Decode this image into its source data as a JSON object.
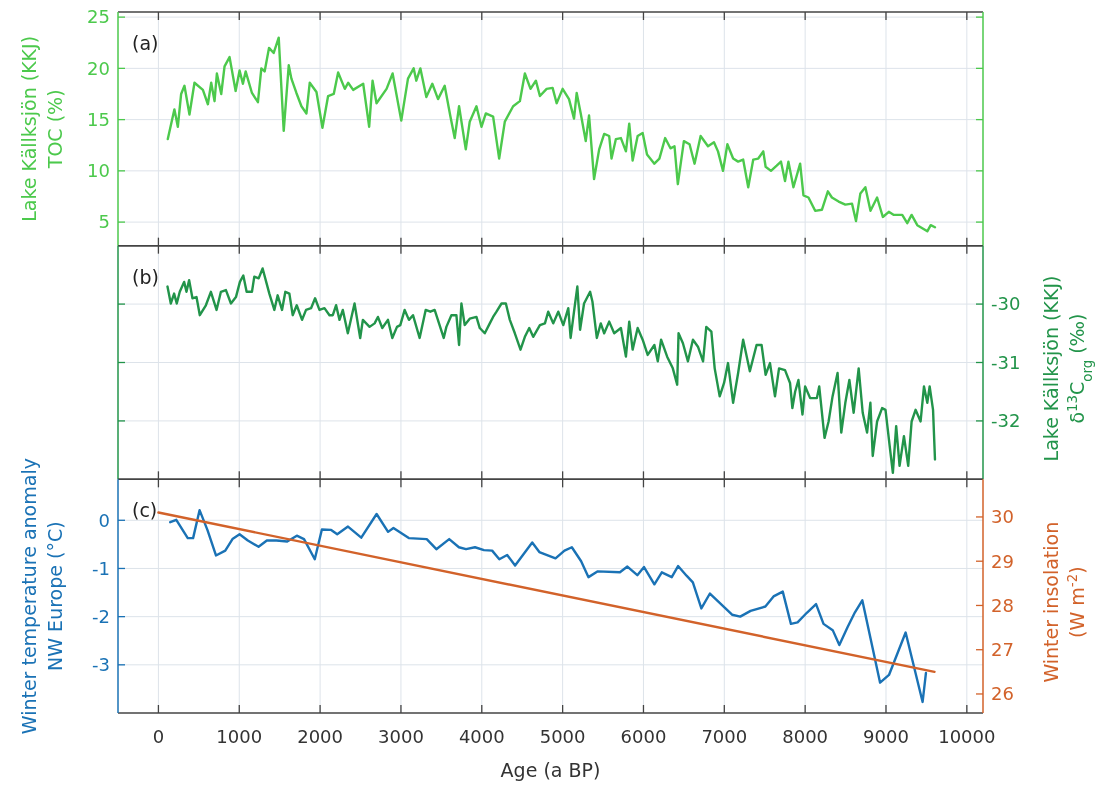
{
  "chart_data": [
    {
      "type": "line",
      "ylabel": "Lake Källksjön (KKJ)\nTOC (%)",
      "annotations": [
        "(a)"
      ],
      "xlim": [
        -500,
        10200
      ],
      "xticks": [
        0,
        1000,
        2000,
        3000,
        4000,
        5000,
        6000,
        7000,
        8000,
        9000,
        10000
      ],
      "ylim": [
        2.7,
        25.5
      ],
      "yticks": [
        5,
        10,
        15,
        20,
        25
      ],
      "grid": true,
      "tick_labels": "y",
      "series": [
        {
          "color": "#4cc94c",
          "x": [
            116,
            198,
            240,
            281,
            322,
            384,
            446,
            550,
            612,
            653,
            694,
            723,
            777,
            818,
            880,
            955,
            1004,
            1045,
            1079,
            1157,
            1231,
            1273,
            1314,
            1368,
            1426,
            1488,
            1550,
            1612,
            1645,
            1707,
            1769,
            1831,
            1872,
            1955,
            2029,
            2099,
            2169,
            2223,
            2306,
            2347,
            2409,
            2533,
            2607,
            2649,
            2698,
            2822,
            2897,
            3004,
            3087,
            3157,
            3190,
            3240,
            3314,
            3388,
            3459,
            3541,
            3612,
            3665,
            3719,
            3802,
            3851,
            3934,
            3996,
            4050,
            4140,
            4215,
            4285,
            4388,
            4471,
            4533,
            4603,
            4669,
            4719,
            4802,
            4876,
            4926,
            5000,
            5079,
            5141,
            5174,
            5224,
            5286,
            5327,
            5389,
            5452,
            5514,
            5576,
            5605,
            5659,
            5721,
            5783,
            5824,
            5866,
            5928,
            5990,
            6044,
            6135,
            6197,
            6268,
            6334,
            6384,
            6425,
            6500,
            6570,
            6632,
            6707,
            6798,
            6872,
            6922,
            6984,
            7038,
            7109,
            7171,
            7233,
            7296,
            7358,
            7420,
            7482,
            7511,
            7577,
            7648,
            7701,
            7751,
            7793,
            7855,
            7938,
            7979,
            8041,
            8124,
            8207,
            8281,
            8331,
            8414,
            8497,
            8580,
            8629,
            8683,
            8745,
            8808,
            8890,
            8961,
            9035,
            9097,
            9201,
            9263,
            9317,
            9387,
            9470,
            9511,
            9553,
            9606
          ],
          "values": [
            13.1,
            16.0,
            14.3,
            17.5,
            18.3,
            15.5,
            18.6,
            17.9,
            16.5,
            18.6,
            16.8,
            19.5,
            17.5,
            20.2,
            21.1,
            17.8,
            19.8,
            18.5,
            19.7,
            17.6,
            16.7,
            20.0,
            19.7,
            22.0,
            21.5,
            23.0,
            13.9,
            20.3,
            19.0,
            17.6,
            16.3,
            15.6,
            18.6,
            17.7,
            14.2,
            17.3,
            17.5,
            19.6,
            18.0,
            18.6,
            17.9,
            18.5,
            14.3,
            18.8,
            16.6,
            18.0,
            19.5,
            14.9,
            19.0,
            20.0,
            18.8,
            20.0,
            17.2,
            18.5,
            17.0,
            18.3,
            15.3,
            13.2,
            16.3,
            12.1,
            14.8,
            16.3,
            14.3,
            15.6,
            15.3,
            11.2,
            14.8,
            16.3,
            16.8,
            19.5,
            18.0,
            18.8,
            17.3,
            18.0,
            18.1,
            16.6,
            18.0,
            17.0,
            15.1,
            17.6,
            15.6,
            12.9,
            15.4,
            9.2,
            12.1,
            13.6,
            13.4,
            11.2,
            13.1,
            13.2,
            11.9,
            14.6,
            11.0,
            13.4,
            13.7,
            11.6,
            10.7,
            11.2,
            13.2,
            12.2,
            12.4,
            8.7,
            12.9,
            12.6,
            10.7,
            13.4,
            12.4,
            12.8,
            11.9,
            10.0,
            12.6,
            11.2,
            10.9,
            11.1,
            8.4,
            11.1,
            11.2,
            11.9,
            10.4,
            10.0,
            10.5,
            10.9,
            9.0,
            10.9,
            8.4,
            10.7,
            7.6,
            7.4,
            6.1,
            6.2,
            8.0,
            7.4,
            7.0,
            6.7,
            6.8,
            5.1,
            7.8,
            8.4,
            6.1,
            7.4,
            5.5,
            6.0,
            5.7,
            5.7,
            4.9,
            5.7,
            4.7,
            4.3,
            4.1,
            4.7,
            4.5
          ]
        }
      ]
    },
    {
      "type": "line",
      "y2label": "Lake Källksjön (KKJ)\nδ$^{13}$C$_{org}$ (‰)",
      "annotations": [
        "(b)"
      ],
      "xlim": [
        -500,
        10200
      ],
      "xticks": [
        0,
        1000,
        2000,
        3000,
        4000,
        5000,
        6000,
        7000,
        8000,
        9000,
        10000
      ],
      "y2lim": [
        -33,
        -29
      ],
      "y2ticks": [
        -32,
        -31,
        -30
      ],
      "grid": true,
      "tick_labels": "y",
      "series": [
        {
          "color": "#22944a",
          "axis": "y2",
          "x": [
            112,
            153,
            194,
            227,
            264,
            318,
            347,
            380,
            421,
            471,
            512,
            587,
            649,
            719,
            773,
            835,
            897,
            959,
            1008,
            1050,
            1091,
            1157,
            1186,
            1240,
            1289,
            1339,
            1372,
            1434,
            1475,
            1529,
            1570,
            1620,
            1661,
            1711,
            1777,
            1826,
            1888,
            1938,
            1992,
            2054,
            2116,
            2157,
            2198,
            2240,
            2281,
            2343,
            2426,
            2496,
            2529,
            2612,
            2674,
            2715,
            2769,
            2839,
            2893,
            2951,
            2992,
            3046,
            3099,
            3149,
            3231,
            3306,
            3364,
            3417,
            3529,
            3562,
            3624,
            3686,
            3719,
            3748,
            3789,
            3851,
            3934,
            3975,
            4037,
            4099,
            4140,
            4182,
            4244,
            4298,
            4347,
            4409,
            4479,
            4533,
            4587,
            4636,
            4719,
            4781,
            4822,
            4884,
            4946,
            5008,
            5070,
            5099,
            5141,
            5182,
            5216,
            5265,
            5340,
            5369,
            5423,
            5472,
            5514,
            5576,
            5638,
            5721,
            5783,
            5824,
            5866,
            5928,
            5990,
            6052,
            6135,
            6177,
            6218,
            6293,
            6363,
            6417,
            6434,
            6488,
            6550,
            6612,
            6674,
            6737,
            6777,
            6840,
            6881,
            6943,
            6997,
            7046,
            7109,
            7171,
            7233,
            7316,
            7399,
            7461,
            7511,
            7565,
            7627,
            7677,
            7751,
            7813,
            7842,
            7876,
            7917,
            7967,
            8000,
            8062,
            8145,
            8174,
            8240,
            8290,
            8339,
            8401,
            8447,
            8497,
            8547,
            8600,
            8662,
            8712,
            8766,
            8807,
            8836,
            8890,
            8952,
            8994,
            9056,
            9085,
            9126,
            9168,
            9222,
            9275,
            9317,
            9366,
            9428,
            9470,
            9511,
            9540,
            9582,
            9606
          ],
          "values": [
            -29.7,
            -29.99,
            -29.82,
            -29.99,
            -29.79,
            -29.62,
            -29.79,
            -29.59,
            -29.9,
            -29.88,
            -30.19,
            -30.02,
            -29.79,
            -30.1,
            -29.79,
            -29.76,
            -29.99,
            -29.88,
            -29.62,
            -29.51,
            -29.79,
            -29.79,
            -29.53,
            -29.56,
            -29.39,
            -29.65,
            -29.82,
            -30.1,
            -29.85,
            -30.1,
            -29.79,
            -29.82,
            -30.19,
            -30.02,
            -30.27,
            -30.1,
            -30.07,
            -29.9,
            -30.1,
            -30.07,
            -30.19,
            -30.19,
            -30.02,
            -30.27,
            -30.1,
            -30.5,
            -29.99,
            -30.58,
            -30.27,
            -30.39,
            -30.33,
            -30.22,
            -30.41,
            -30.27,
            -30.58,
            -30.39,
            -30.36,
            -30.1,
            -30.27,
            -30.19,
            -30.58,
            -30.1,
            -30.13,
            -30.1,
            -30.58,
            -30.39,
            -30.19,
            -30.19,
            -30.7,
            -29.99,
            -30.36,
            -30.25,
            -30.22,
            -30.41,
            -30.5,
            -30.33,
            -30.22,
            -30.13,
            -29.99,
            -29.99,
            -30.27,
            -30.5,
            -30.78,
            -30.56,
            -30.41,
            -30.56,
            -30.36,
            -30.33,
            -30.13,
            -30.33,
            -30.13,
            -30.36,
            -30.07,
            -30.58,
            -30.13,
            -29.7,
            -30.44,
            -29.99,
            -29.79,
            -29.96,
            -30.58,
            -30.33,
            -30.5,
            -30.3,
            -30.5,
            -30.41,
            -30.9,
            -30.3,
            -30.78,
            -30.41,
            -30.61,
            -30.87,
            -30.7,
            -30.98,
            -30.61,
            -30.9,
            -31.1,
            -31.38,
            -30.5,
            -30.67,
            -30.98,
            -30.61,
            -30.73,
            -30.98,
            -30.39,
            -30.47,
            -31.1,
            -31.58,
            -31.35,
            -31.01,
            -31.69,
            -31.18,
            -30.61,
            -31.15,
            -30.7,
            -30.7,
            -31.21,
            -31.01,
            -31.58,
            -31.1,
            -31.13,
            -31.35,
            -31.78,
            -31.5,
            -31.3,
            -31.89,
            -31.41,
            -31.61,
            -31.61,
            -31.41,
            -32.29,
            -32.01,
            -31.58,
            -31.18,
            -32.2,
            -31.69,
            -31.3,
            -31.86,
            -31.1,
            -31.86,
            -32.2,
            -31.69,
            -32.6,
            -32.01,
            -31.78,
            -31.81,
            -32.55,
            -32.89,
            -32.09,
            -32.77,
            -32.26,
            -32.77,
            -32.01,
            -31.81,
            -32.01,
            -31.41,
            -31.69,
            -31.41,
            -31.81,
            -32.66
          ]
        }
      ]
    },
    {
      "type": "line",
      "xlabel": "Age (a BP)",
      "ylabel": "Winter temperature anomaly\nNW Europe (°C)",
      "y2label": "Winter insolation\n(W m$^{-2}$)",
      "annotations": [
        "(c)"
      ],
      "xlim": [
        -500,
        10200
      ],
      "xticks": [
        0,
        1000,
        2000,
        3000,
        4000,
        5000,
        6000,
        7000,
        8000,
        9000,
        10000
      ],
      "ylim": [
        -4,
        0.85
      ],
      "yticks": [
        -3,
        -2,
        -1,
        0
      ],
      "y2lim": [
        25.57,
        30.85
      ],
      "y2ticks": [
        26,
        27,
        28,
        29,
        30
      ],
      "grid": true,
      "series": [
        {
          "color": "#1a72b5",
          "x": [
            146,
            221,
            363,
            429,
            509,
            606,
            712,
            827,
            916,
            1004,
            1106,
            1239,
            1341,
            1460,
            1593,
            1712,
            1801,
            1934,
            2022,
            2137,
            2212,
            2345,
            2509,
            2699,
            2841,
            2907,
            3097,
            3319,
            3438,
            3597,
            3717,
            3805,
            3916,
            4027,
            4128,
            4217,
            4314,
            4412,
            4624,
            4712,
            4912,
            5023,
            5114,
            5229,
            5320,
            5435,
            5709,
            5801,
            5924,
            6007,
            6135,
            6227,
            6350,
            6428,
            6533,
            6611,
            6716,
            6822,
            7096,
            7197,
            7325,
            7508,
            7609,
            7723,
            7824,
            7906,
            8021,
            8135,
            8227,
            8341,
            8423,
            8524,
            8616,
            8707,
            8927,
            9037,
            9243,
            9453,
            9494
          ],
          "values": [
            -0.04,
            0.01,
            -0.37,
            -0.37,
            0.21,
            -0.2,
            -0.73,
            -0.63,
            -0.39,
            -0.29,
            -0.42,
            -0.55,
            -0.42,
            -0.42,
            -0.44,
            -0.32,
            -0.39,
            -0.81,
            -0.19,
            -0.2,
            -0.29,
            -0.13,
            -0.36,
            0.13,
            -0.24,
            -0.16,
            -0.37,
            -0.39,
            -0.6,
            -0.39,
            -0.56,
            -0.6,
            -0.56,
            -0.62,
            -0.63,
            -0.81,
            -0.72,
            -0.94,
            -0.46,
            -0.66,
            -0.79,
            -0.63,
            -0.56,
            -0.85,
            -1.18,
            -1.06,
            -1.08,
            -0.96,
            -1.14,
            -0.97,
            -1.33,
            -1.08,
            -1.18,
            -0.95,
            -1.15,
            -1.29,
            -1.83,
            -1.52,
            -1.96,
            -2.0,
            -1.88,
            -1.79,
            -1.58,
            -1.48,
            -2.15,
            -2.12,
            -1.92,
            -1.74,
            -2.15,
            -2.28,
            -2.59,
            -2.22,
            -1.91,
            -1.66,
            -3.37,
            -3.21,
            -2.33,
            -3.77,
            -3.17
          ]
        },
        {
          "color": "#d2622a",
          "axis": "y2",
          "x": [
            0,
            9600
          ],
          "values": [
            30.1,
            26.5
          ]
        }
      ]
    }
  ]
}
